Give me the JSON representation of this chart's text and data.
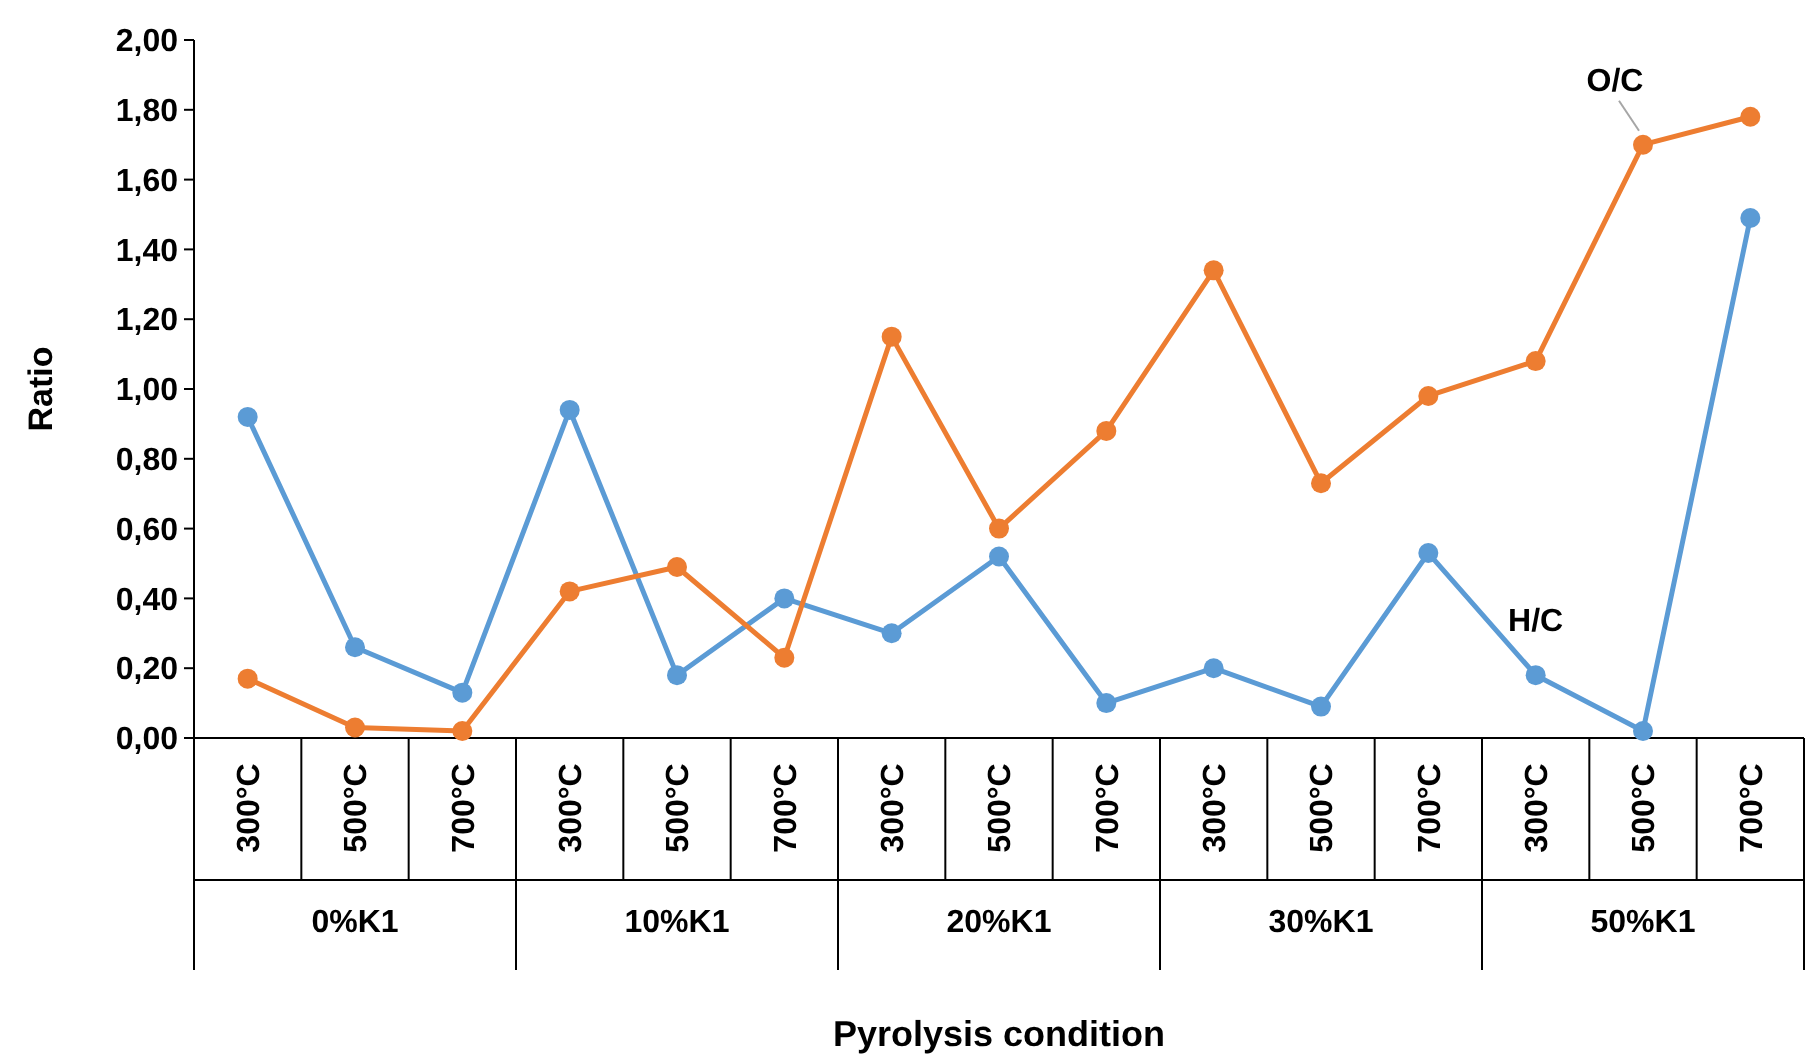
{
  "chart_data": {
    "type": "line",
    "xlabel": "Pyrolysis condition",
    "ylabel": "Ratio",
    "categories": [
      "300°C",
      "500°C",
      "700°C",
      "300°C",
      "500°C",
      "700°C",
      "300°C",
      "500°C",
      "700°C",
      "300°C",
      "500°C",
      "700°C",
      "300°C",
      "500°C",
      "700°C"
    ],
    "annotations": [
      "0%K1",
      "10%K1",
      "20%K1",
      "30%K1",
      "50%K1"
    ],
    "series": [
      {
        "name": "H/C",
        "color": "#5b9bd5",
        "values": [
          0.92,
          0.26,
          0.13,
          0.94,
          0.18,
          0.4,
          0.3,
          0.52,
          0.1,
          0.2,
          0.09,
          0.53,
          0.18,
          0.02,
          1.49
        ]
      },
      {
        "name": "O/C",
        "color": "#ed7d31",
        "values": [
          0.17,
          0.03,
          0.02,
          0.42,
          0.49,
          0.23,
          1.15,
          0.6,
          0.88,
          1.34,
          0.73,
          0.98,
          1.08,
          1.7,
          1.78
        ]
      }
    ],
    "ylim": [
      0,
      2
    ],
    "yticks": [
      {
        "value": 0,
        "label": "0,00"
      },
      {
        "value": 0.2,
        "label": "0,20"
      },
      {
        "value": 0.4,
        "label": "0,40"
      },
      {
        "value": 0.6,
        "label": "0,60"
      },
      {
        "value": 0.8,
        "label": "0,80"
      },
      {
        "value": 1,
        "label": "1,00"
      },
      {
        "value": 1.2,
        "label": "1,20"
      },
      {
        "value": 1.4,
        "label": "1,40"
      },
      {
        "value": 1.6,
        "label": "1,60"
      },
      {
        "value": 1.8,
        "label": "1,80"
      },
      {
        "value": 2,
        "label": "2,00"
      }
    ],
    "grid": false,
    "marker": "circle",
    "line_style": "solid"
  }
}
